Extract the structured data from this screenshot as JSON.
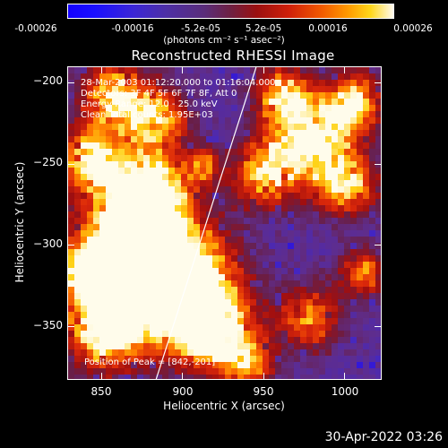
{
  "colorbar": {
    "tick_labels": [
      "-0.00026",
      "-0.00016",
      "-5.2e-05",
      "5.2e-05",
      "0.00016",
      "0.00026"
    ],
    "units": "(photons cm⁻² s⁻¹ asec⁻²)",
    "colors": [
      "#1400ff",
      "#4d2fa6",
      "#6e2042",
      "#d0200a",
      "#ff9a00",
      "#fffaf0"
    ]
  },
  "title": "Reconstructed RHESSI Image",
  "info": {
    "line1": "28-Mar-2003 01:12:20.000 to 01:16:04.000",
    "line2": "Detectors: 3F 4F 5F 6F 7F 8F, Att 0",
    "line3": "Energy Range: 12.0 - 25.0 keV",
    "line4": "Clean    Total counts: 1.95E+03",
    "peak": "Position of Peak = [842,-201]"
  },
  "axes": {
    "xlabel": "Heliocentric X (arcsec)",
    "ylabel": "Heliocentric Y (arcsec)",
    "xlim": [
      829,
      1023
    ],
    "ylim": [
      -383,
      -190
    ],
    "xticks": [
      850,
      900,
      950,
      1000
    ],
    "xtick_labels": [
      "850",
      "900",
      "950",
      "1000"
    ],
    "yticks": [
      -200,
      -250,
      -300,
      -350
    ],
    "ytick_labels": [
      "−200",
      "−250",
      "−300",
      "−350"
    ]
  },
  "limb_line": {
    "x": [
      883,
      945
    ],
    "y": [
      -383,
      -190
    ]
  },
  "timestamp": "30-Apr-2022 03:26"
}
